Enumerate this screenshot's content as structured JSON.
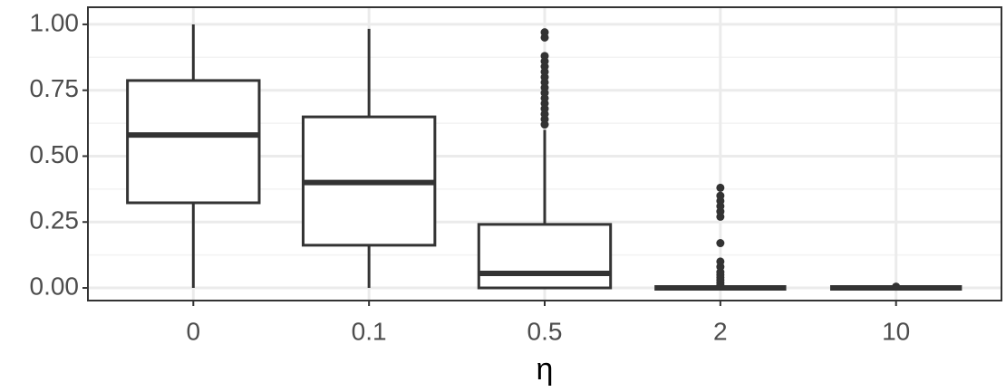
{
  "chart_data": {
    "type": "box",
    "x_label": "η",
    "categories": [
      "0",
      "0.1",
      "0.5",
      "2",
      "10"
    ],
    "boxes": [
      {
        "min": 0,
        "q1": 0.323,
        "median": 0.58,
        "q3": 0.787,
        "max": 1.0,
        "outliers": []
      },
      {
        "min": 0,
        "q1": 0.162,
        "median": 0.4,
        "q3": 0.649,
        "max": 0.983,
        "outliers": []
      },
      {
        "min": 0,
        "q1": 0,
        "median": 0.055,
        "q3": 0.241,
        "max": 0.6,
        "outliers": [
          0.62,
          0.64,
          0.66,
          0.68,
          0.7,
          0.72,
          0.74,
          0.76,
          0.78,
          0.8,
          0.82,
          0.84,
          0.86,
          0.88,
          0.95,
          0.97
        ]
      },
      {
        "min": 0,
        "q1": 0,
        "median": 0,
        "q3": 0,
        "max": 0,
        "outliers": [
          0.01,
          0.02,
          0.03,
          0.04,
          0.05,
          0.06,
          0.08,
          0.1,
          0.17,
          0.27,
          0.29,
          0.31,
          0.33,
          0.35,
          0.38
        ]
      },
      {
        "min": 0,
        "q1": 0,
        "median": 0,
        "q3": 0,
        "max": 0,
        "outliers": [
          0.005
        ]
      }
    ],
    "color": "#333333",
    "ylim": [
      -0.048,
      1.065
    ],
    "yticks": [
      {
        "value": 0,
        "label": "0.00"
      },
      {
        "value": 0.25,
        "label": "0.25"
      },
      {
        "value": 0.5,
        "label": "0.50"
      },
      {
        "value": 0.75,
        "label": "0.75"
      },
      {
        "value": 1,
        "label": "1.00"
      }
    ],
    "yminor": [
      0.125,
      0.375,
      0.625,
      0.875
    ],
    "grid": true
  }
}
